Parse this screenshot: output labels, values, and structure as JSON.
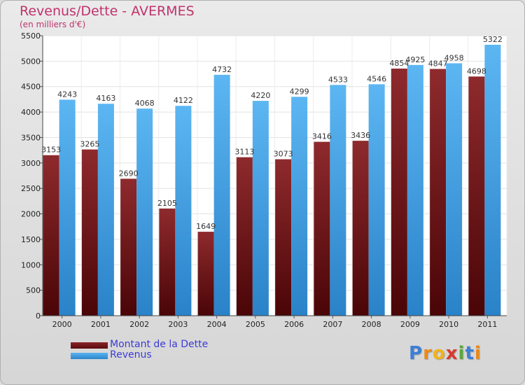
{
  "header": {
    "title": "Revenus/Dette - AVERMES",
    "subtitle": "(en milliers d'€)"
  },
  "colors": {
    "dette": "#7a1c1f",
    "revenus": "#4aa3e6",
    "title": "#c0336b",
    "legend_text": "#3b3bd6"
  },
  "chart_data": {
    "type": "bar",
    "title": "Revenus/Dette - AVERMES",
    "subtitle": "(en milliers d'€)",
    "xlabel": "",
    "ylabel": "",
    "ylim": [
      0,
      5500
    ],
    "yticks": [
      0,
      500,
      1000,
      1500,
      2000,
      2500,
      3000,
      3500,
      4000,
      4500,
      5000,
      5500
    ],
    "grid": true,
    "legend_position": "bottom-left",
    "categories": [
      "2000",
      "2001",
      "2002",
      "2003",
      "2004",
      "2005",
      "2006",
      "2007",
      "2008",
      "2009",
      "2010",
      "2011"
    ],
    "series": [
      {
        "name": "Montant de la Dette",
        "values": [
          3153,
          3265,
          2690,
          2105,
          1649,
          3113,
          3073,
          3416,
          3436,
          4854,
          4847,
          4698
        ]
      },
      {
        "name": "Revenus",
        "values": [
          4243,
          4163,
          4068,
          4122,
          4732,
          4220,
          4299,
          4533,
          4546,
          4925,
          4958,
          5322
        ]
      }
    ]
  },
  "legend": {
    "items": [
      {
        "label": "Montant de la Dette"
      },
      {
        "label": "Revenus"
      }
    ]
  },
  "logo": {
    "text": "Proxiti",
    "letters": [
      "P",
      "r",
      "o",
      "x",
      "i",
      "t",
      "i"
    ],
    "letter_colors": [
      "#3d7fd6",
      "#e88a1a",
      "#f2b21a",
      "#d93b2f",
      "#5aa83a",
      "#3d7fd6",
      "#e88a1a"
    ]
  }
}
